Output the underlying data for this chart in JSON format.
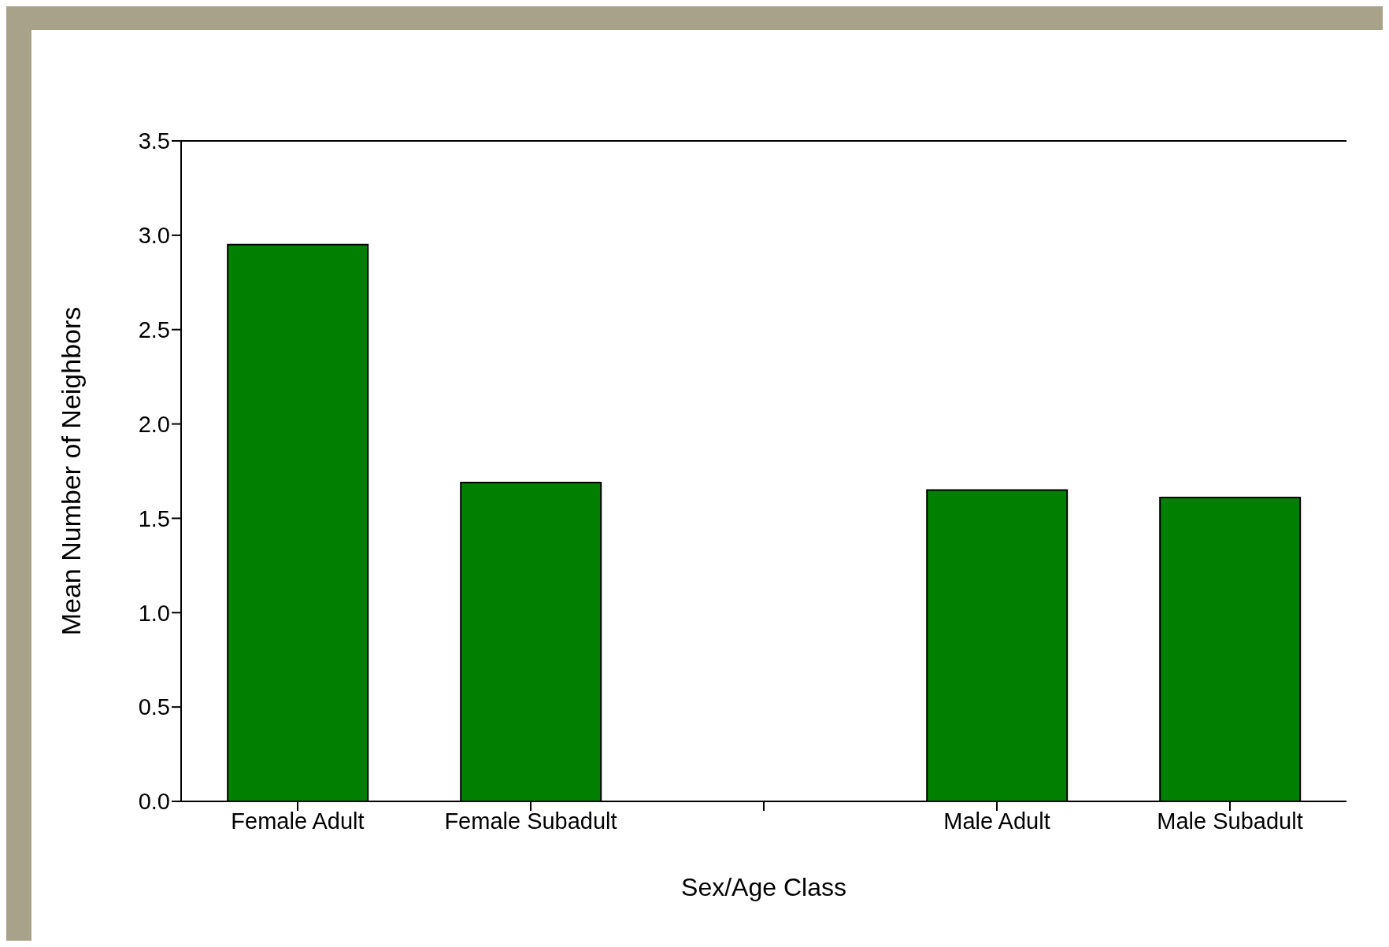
{
  "chart_data": {
    "type": "bar",
    "xlabel": "Sex/Age Class",
    "ylabel": "Mean Number of Neighbors",
    "categories": [
      "Female Adult",
      "Female Subadult",
      null,
      "Male Adult",
      "Male Subadult"
    ],
    "values": [
      2.95,
      1.69,
      null,
      1.65,
      1.61
    ],
    "color": "#007f00",
    "ylim": [
      0,
      3.5
    ],
    "yticks": [
      {
        "value": 0,
        "label": "0.0"
      },
      {
        "value": 0.5,
        "label": "0.5"
      },
      {
        "value": 1,
        "label": "1.0"
      },
      {
        "value": 1.5,
        "label": "1.5"
      },
      {
        "value": 2,
        "label": "2.0"
      },
      {
        "value": 2.5,
        "label": "2.5"
      },
      {
        "value": 3,
        "label": "3.0"
      },
      {
        "value": 3.5,
        "label": "3.5"
      }
    ],
    "grid": false,
    "legend": false
  }
}
